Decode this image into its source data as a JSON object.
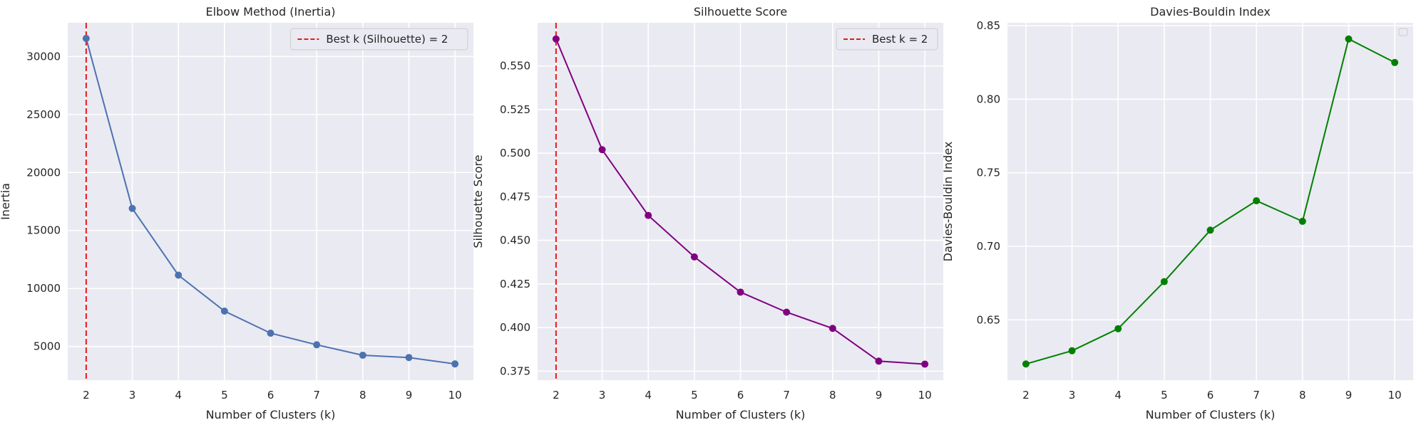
{
  "figure": {
    "panels": 3
  },
  "chart_data": [
    {
      "type": "line",
      "title": "Elbow Method (Inertia)",
      "xlabel": "Number of Clusters (k)",
      "ylabel": "Inertia",
      "x": [
        2,
        3,
        4,
        5,
        6,
        7,
        8,
        9,
        10
      ],
      "series": [
        {
          "values": [
            31550,
            16900,
            11150,
            8050,
            6150,
            5150,
            4250,
            4050,
            3500
          ],
          "color": "#4C72B0"
        }
      ],
      "xlim": [
        1.6,
        10.4
      ],
      "ylim": [
        2100,
        32900
      ],
      "xticks": [
        2,
        3,
        4,
        5,
        6,
        7,
        8,
        9,
        10
      ],
      "yticks": [
        5000,
        10000,
        15000,
        20000,
        25000,
        30000
      ],
      "ytick_labels": [
        "5000",
        "10000",
        "15000",
        "20000",
        "25000",
        "30000"
      ],
      "vline": {
        "x": 2,
        "color": "#e41a1c"
      },
      "legend": {
        "position": "top-right",
        "entries": [
          {
            "label": "Best k (Silhouette) = 2",
            "color": "#e41a1c",
            "style": "dashed"
          }
        ]
      },
      "grid": true,
      "background": "#EAEAF2"
    },
    {
      "type": "line",
      "title": "Silhouette Score",
      "xlabel": "Number of Clusters (k)",
      "ylabel": "Silhouette Score",
      "x": [
        2,
        3,
        4,
        5,
        6,
        7,
        8,
        9,
        10
      ],
      "series": [
        {
          "values": [
            0.5655,
            0.502,
            0.4643,
            0.4405,
            0.4203,
            0.4088,
            0.3995,
            0.3807,
            0.379
          ],
          "color": "#800080"
        }
      ],
      "xlim": [
        1.6,
        10.4
      ],
      "ylim": [
        0.3698,
        0.5748
      ],
      "xticks": [
        2,
        3,
        4,
        5,
        6,
        7,
        8,
        9,
        10
      ],
      "yticks": [
        0.375,
        0.4,
        0.425,
        0.45,
        0.475,
        0.5,
        0.525,
        0.55
      ],
      "ytick_labels": [
        "0.375",
        "0.400",
        "0.425",
        "0.450",
        "0.475",
        "0.500",
        "0.525",
        "0.550"
      ],
      "vline": {
        "x": 2,
        "color": "#e41a1c"
      },
      "legend": {
        "position": "top-right",
        "entries": [
          {
            "label": "Best k = 2",
            "color": "#e41a1c",
            "style": "dashed"
          }
        ]
      },
      "grid": true,
      "background": "#EAEAF2"
    },
    {
      "type": "line",
      "title": "Davies-Bouldin Index",
      "xlabel": "Number of Clusters (k)",
      "ylabel": "Davies-Bouldin Index",
      "x": [
        2,
        3,
        4,
        5,
        6,
        7,
        8,
        9,
        10
      ],
      "series": [
        {
          "values": [
            0.62,
            0.629,
            0.644,
            0.676,
            0.711,
            0.731,
            0.717,
            0.841,
            0.825
          ],
          "color": "#008000"
        }
      ],
      "xlim": [
        1.6,
        10.4
      ],
      "ylim": [
        0.609,
        0.852
      ],
      "xticks": [
        2,
        3,
        4,
        5,
        6,
        7,
        8,
        9,
        10
      ],
      "yticks": [
        0.65,
        0.7,
        0.75,
        0.8,
        0.85
      ],
      "ytick_labels": [
        "0.65",
        "0.70",
        "0.75",
        "0.80",
        "0.85"
      ],
      "legend": {
        "position": "top-right",
        "entries": []
      },
      "grid": true,
      "background": "#EAEAF2"
    }
  ]
}
